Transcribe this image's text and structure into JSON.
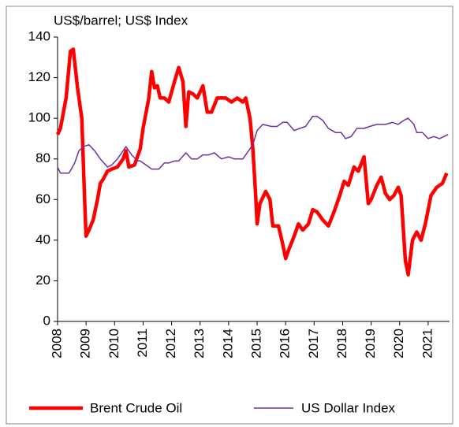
{
  "chart_data": {
    "type": "line",
    "title": "US$/barrel;  US$  Index",
    "xlim": [
      2008,
      2021.75
    ],
    "xticks": [
      2008,
      2009,
      2010,
      2011,
      2012,
      2013,
      2014,
      2015,
      2016,
      2017,
      2018,
      2019,
      2020,
      2021
    ],
    "ylim": [
      0,
      140
    ],
    "yticks": [
      0,
      20,
      40,
      60,
      80,
      100,
      120,
      140
    ],
    "grid": false,
    "legend": "bottom",
    "series": [
      {
        "name": "Brent Crude Oil",
        "color": "#ff0000",
        "x": [
          2008.0,
          2008.1,
          2008.3,
          2008.45,
          2008.55,
          2008.7,
          2008.85,
          2008.95,
          2009.0,
          2009.1,
          2009.25,
          2009.4,
          2009.5,
          2009.6,
          2009.75,
          2009.9,
          2010.1,
          2010.3,
          2010.4,
          2010.5,
          2010.7,
          2010.9,
          2011.0,
          2011.2,
          2011.3,
          2011.4,
          2011.5,
          2011.6,
          2011.75,
          2011.9,
          2012.1,
          2012.25,
          2012.4,
          2012.5,
          2012.6,
          2012.75,
          2012.9,
          2013.1,
          2013.25,
          2013.4,
          2013.6,
          2013.75,
          2013.9,
          2014.1,
          2014.3,
          2014.5,
          2014.6,
          2014.75,
          2014.85,
          2014.95,
          2015.0,
          2015.1,
          2015.3,
          2015.45,
          2015.55,
          2015.75,
          2015.9,
          2016.0,
          2016.1,
          2016.3,
          2016.45,
          2016.6,
          2016.8,
          2016.95,
          2017.1,
          2017.3,
          2017.5,
          2017.7,
          2017.9,
          2018.05,
          2018.2,
          2018.4,
          2018.55,
          2018.75,
          2018.9,
          2019.0,
          2019.2,
          2019.35,
          2019.5,
          2019.65,
          2019.8,
          2019.95,
          2020.05,
          2020.2,
          2020.3,
          2020.45,
          2020.6,
          2020.75,
          2020.9,
          2021.1,
          2021.3,
          2021.5,
          2021.65
        ],
        "values": [
          92,
          95,
          110,
          133,
          134,
          115,
          100,
          60,
          42,
          45,
          50,
          60,
          68,
          70,
          74,
          75,
          76,
          80,
          84,
          76,
          77,
          85,
          95,
          110,
          123,
          115,
          116,
          110,
          110,
          108,
          118,
          125,
          118,
          96,
          113,
          112,
          110,
          116,
          103,
          103,
          110,
          110,
          110,
          108,
          110,
          108,
          110,
          100,
          85,
          62,
          48,
          58,
          64,
          60,
          47,
          47,
          38,
          31,
          35,
          42,
          48,
          45,
          48,
          55,
          54,
          50,
          47,
          54,
          62,
          69,
          67,
          76,
          74,
          81,
          58,
          60,
          67,
          71,
          63,
          60,
          62,
          66,
          62,
          30,
          23,
          40,
          44,
          40,
          48,
          62,
          66,
          68,
          73
        ]
      },
      {
        "name": "US Dollar Index",
        "color": "#7030a0",
        "x": [
          2008.0,
          2008.1,
          2008.4,
          2008.6,
          2008.75,
          2008.9,
          2009.1,
          2009.3,
          2009.5,
          2009.75,
          2009.9,
          2010.1,
          2010.4,
          2010.6,
          2010.8,
          2010.9,
          2011.1,
          2011.3,
          2011.55,
          2011.75,
          2011.9,
          2012.1,
          2012.25,
          2012.5,
          2012.7,
          2012.9,
          2013.1,
          2013.3,
          2013.5,
          2013.75,
          2014.0,
          2014.2,
          2014.5,
          2014.7,
          2014.85,
          2015.0,
          2015.2,
          2015.5,
          2015.7,
          2015.9,
          2016.05,
          2016.3,
          2016.5,
          2016.7,
          2016.95,
          2017.1,
          2017.3,
          2017.5,
          2017.75,
          2017.95,
          2018.1,
          2018.3,
          2018.5,
          2018.75,
          2018.95,
          2019.2,
          2019.5,
          2019.75,
          2019.95,
          2020.15,
          2020.3,
          2020.5,
          2020.6,
          2020.8,
          2021.0,
          2021.2,
          2021.4,
          2021.55,
          2021.7
        ],
        "values": [
          76,
          73,
          73,
          78,
          84,
          86,
          87,
          84,
          80,
          76,
          77,
          80,
          86,
          82,
          79,
          79,
          77,
          75,
          75,
          78,
          78,
          79,
          79,
          83,
          80,
          80,
          82,
          82,
          83,
          80,
          81,
          80,
          80,
          84,
          87,
          94,
          97,
          96,
          96,
          98,
          98,
          94,
          95,
          96,
          101,
          101,
          99,
          95,
          93,
          93,
          90,
          91,
          95,
          95,
          96,
          97,
          97,
          98,
          97,
          99,
          100,
          97,
          93,
          93,
          90,
          91,
          90,
          91,
          92
        ]
      }
    ]
  }
}
